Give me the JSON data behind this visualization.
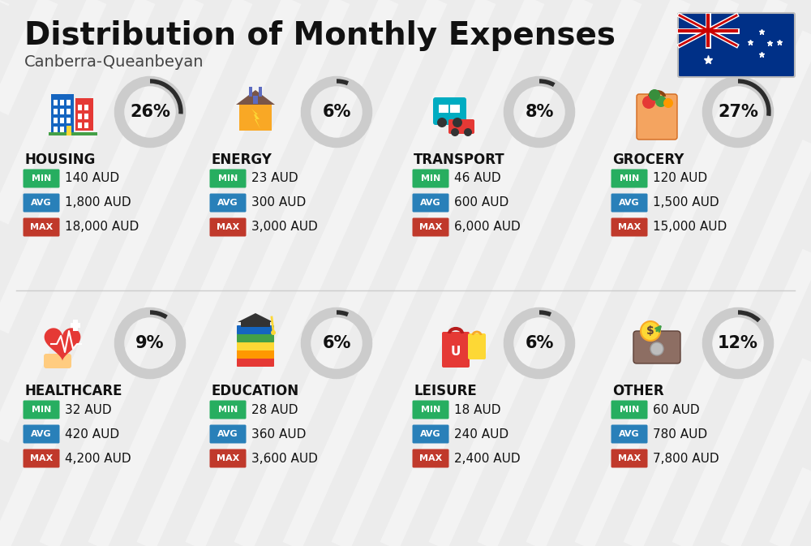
{
  "title": "Distribution of Monthly Expenses",
  "subtitle": "Canberra-Queanbeyan",
  "background_color": "#ececec",
  "categories": [
    {
      "name": "HOUSING",
      "pct": 26,
      "min_val": "140 AUD",
      "avg_val": "1,800 AUD",
      "max_val": "18,000 AUD",
      "row": 0,
      "col": 0
    },
    {
      "name": "ENERGY",
      "pct": 6,
      "min_val": "23 AUD",
      "avg_val": "300 AUD",
      "max_val": "3,000 AUD",
      "row": 0,
      "col": 1
    },
    {
      "name": "TRANSPORT",
      "pct": 8,
      "min_val": "46 AUD",
      "avg_val": "600 AUD",
      "max_val": "6,000 AUD",
      "row": 0,
      "col": 2
    },
    {
      "name": "GROCERY",
      "pct": 27,
      "min_val": "120 AUD",
      "avg_val": "1,500 AUD",
      "max_val": "15,000 AUD",
      "row": 0,
      "col": 3
    },
    {
      "name": "HEALTHCARE",
      "pct": 9,
      "min_val": "32 AUD",
      "avg_val": "420 AUD",
      "max_val": "4,200 AUD",
      "row": 1,
      "col": 0
    },
    {
      "name": "EDUCATION",
      "pct": 6,
      "min_val": "28 AUD",
      "avg_val": "360 AUD",
      "max_val": "3,600 AUD",
      "row": 1,
      "col": 1
    },
    {
      "name": "LEISURE",
      "pct": 6,
      "min_val": "18 AUD",
      "avg_val": "240 AUD",
      "max_val": "2,400 AUD",
      "row": 1,
      "col": 2
    },
    {
      "name": "OTHER",
      "pct": 12,
      "min_val": "60 AUD",
      "avg_val": "780 AUD",
      "max_val": "7,800 AUD",
      "row": 1,
      "col": 3
    }
  ],
  "min_color": "#27ae60",
  "avg_color": "#2980b9",
  "max_color": "#c0392b",
  "ring_dark": "#2c2c2c",
  "ring_light": "#cccccc",
  "title_fontsize": 28,
  "subtitle_fontsize": 14,
  "cat_fontsize": 12,
  "val_fontsize": 11,
  "pct_fontsize": 15,
  "badge_label_fontsize": 8
}
